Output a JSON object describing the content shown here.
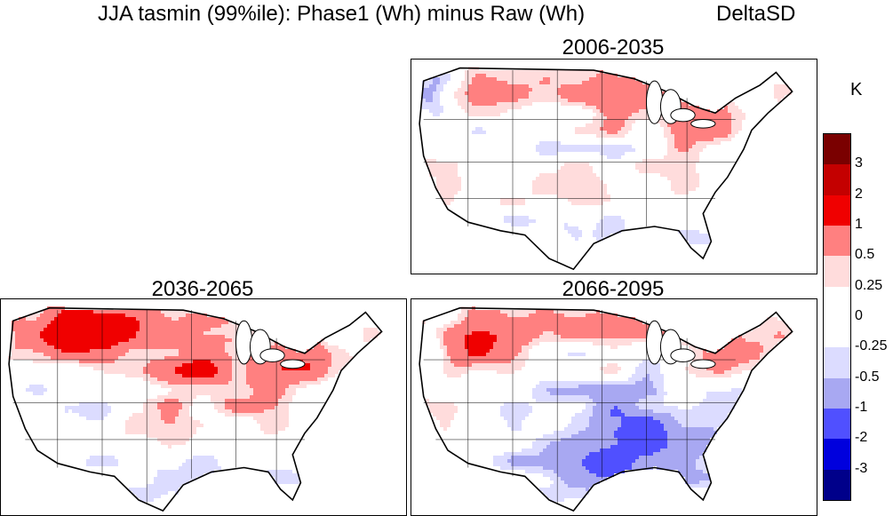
{
  "title": {
    "main": "JJA  tasmin (99%ile): Phase1 (Wh) minus Raw (Wh)",
    "tag": "DeltaSD"
  },
  "panels": [
    {
      "label": "2006-2035",
      "pattern": "early"
    },
    {
      "label": "2036-2065",
      "pattern": "mid"
    },
    {
      "label": "2066-2095",
      "pattern": "late"
    }
  ],
  "colorbar": {
    "unit": "K",
    "labels": [
      "3",
      "2",
      "1",
      "0.5",
      "0.25",
      "0",
      "-0.25",
      "-0.5",
      "-1",
      "-2",
      "-3"
    ],
    "colors": [
      "#7a0000",
      "#c40000",
      "#f00000",
      "#ff8080",
      "#ffdcdc",
      "#ffffff",
      "#ffffff",
      "#dcdcff",
      "#a8a8f2",
      "#5050ff",
      "#0000dd",
      "#00008a"
    ]
  }
}
